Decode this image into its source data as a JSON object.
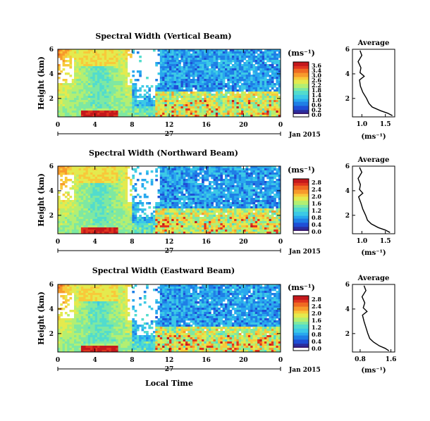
{
  "palette": [
    "#3a1a6e",
    "#2b2d9e",
    "#1f4fd6",
    "#1f7fe6",
    "#29a8ee",
    "#3cc9e6",
    "#52dccd",
    "#7ee8a2",
    "#b3ef72",
    "#e4ea4e",
    "#f8c93a",
    "#f79a2c",
    "#ef6a22",
    "#e0341f",
    "#c4181c"
  ],
  "panels": [
    {
      "title": "Spectral Width (Vertical Beam)",
      "colorbar": {
        "unit": "(ms⁻¹)",
        "ticks": [
          "3.6",
          "3.4",
          "3.0",
          "2.6",
          "2.2",
          "1.8",
          "1.4",
          "1.0",
          "0.6",
          "0.2",
          "0.0"
        ]
      },
      "profile": {
        "title": "Average",
        "xlabel": "(ms⁻¹)",
        "xticks": [
          "1.0",
          "1.5"
        ],
        "xrange": [
          0.8,
          1.7
        ]
      }
    },
    {
      "title": "Spectral Width (Northward Beam)",
      "colorbar": {
        "unit": "(ms⁻¹)",
        "ticks": [
          "2.8",
          "2.4",
          "2.0",
          "1.6",
          "1.2",
          "0.8",
          "0.4",
          "0.0"
        ]
      },
      "profile": {
        "title": "Average",
        "xlabel": "(ms⁻¹)",
        "xticks": [
          "1.0",
          "1.5"
        ],
        "xrange": [
          0.8,
          1.7
        ]
      }
    },
    {
      "title": "Spectral Width (Eastward Beam)",
      "colorbar": {
        "unit": "(ms⁻¹)",
        "ticks": [
          "2.8",
          "2.4",
          "2.0",
          "1.6",
          "1.2",
          "0.8",
          "0.4",
          "0.0"
        ]
      },
      "profile": {
        "title": "Average",
        "xlabel": "(ms⁻¹)",
        "xticks": [
          "0.8",
          "1.6"
        ],
        "xrange": [
          0.6,
          1.7
        ]
      }
    }
  ],
  "axes": {
    "ylabel": "Height (km)",
    "yticks": [
      "2",
      "4",
      "6"
    ],
    "xticks": [
      "0",
      "4",
      "8",
      "12",
      "16",
      "20",
      "0"
    ],
    "day_label": "27",
    "month_label": "Jan 2015",
    "xlabel": "Local Time",
    "profile_yticks": [
      "2",
      "4",
      "6"
    ]
  },
  "chart_data": [
    {
      "type": "heatmap",
      "title": "Spectral Width (Vertical Beam)",
      "x": "local time (h), 0–24",
      "ylabel": "Height (km)",
      "ylim": [
        0.5,
        6
      ],
      "colorbar_range": [
        0.0,
        3.6
      ],
      "profile": {
        "title": "Average",
        "xlabel": "(ms⁻¹)",
        "height": [
          0.6,
          0.8,
          1.0,
          1.3,
          1.6,
          2.0,
          2.5,
          3.0,
          3.5,
          3.8,
          4.1,
          4.5,
          5.0,
          5.5,
          5.9
        ],
        "value": [
          1.65,
          1.55,
          1.4,
          1.22,
          1.15,
          1.1,
          1.02,
          0.97,
          0.95,
          1.05,
          0.96,
          0.98,
          0.92,
          1.0,
          0.96
        ]
      }
    },
    {
      "type": "heatmap",
      "title": "Spectral Width (Northward Beam)",
      "x": "local time (h), 0–24",
      "ylabel": "Height (km)",
      "ylim": [
        0.5,
        6
      ],
      "colorbar_range": [
        0.0,
        2.8
      ],
      "profile": {
        "title": "Average",
        "xlabel": "(ms⁻¹)",
        "height": [
          0.6,
          0.8,
          1.0,
          1.3,
          1.6,
          2.0,
          2.5,
          3.0,
          3.5,
          3.8,
          4.1,
          4.5,
          5.0,
          5.5,
          5.9
        ],
        "value": [
          1.6,
          1.5,
          1.35,
          1.2,
          1.12,
          1.08,
          1.02,
          0.98,
          0.93,
          1.02,
          0.95,
          0.97,
          0.92,
          1.0,
          0.95
        ]
      }
    },
    {
      "type": "heatmap",
      "title": "Spectral Width (Eastward Beam)",
      "x": "local time (h), 0–24",
      "ylabel": "Height (km)",
      "ylim": [
        0.5,
        6
      ],
      "colorbar_range": [
        0.0,
        2.8
      ],
      "profile": {
        "title": "Average",
        "xlabel": "(ms⁻¹)",
        "height": [
          0.6,
          0.8,
          1.0,
          1.3,
          1.6,
          2.0,
          2.5,
          3.0,
          3.5,
          3.8,
          4.1,
          4.5,
          5.0,
          5.5,
          5.9
        ],
        "value": [
          1.55,
          1.45,
          1.3,
          1.15,
          1.05,
          1.0,
          0.95,
          0.9,
          0.86,
          0.98,
          0.88,
          0.92,
          0.85,
          0.95,
          0.9
        ]
      }
    }
  ]
}
